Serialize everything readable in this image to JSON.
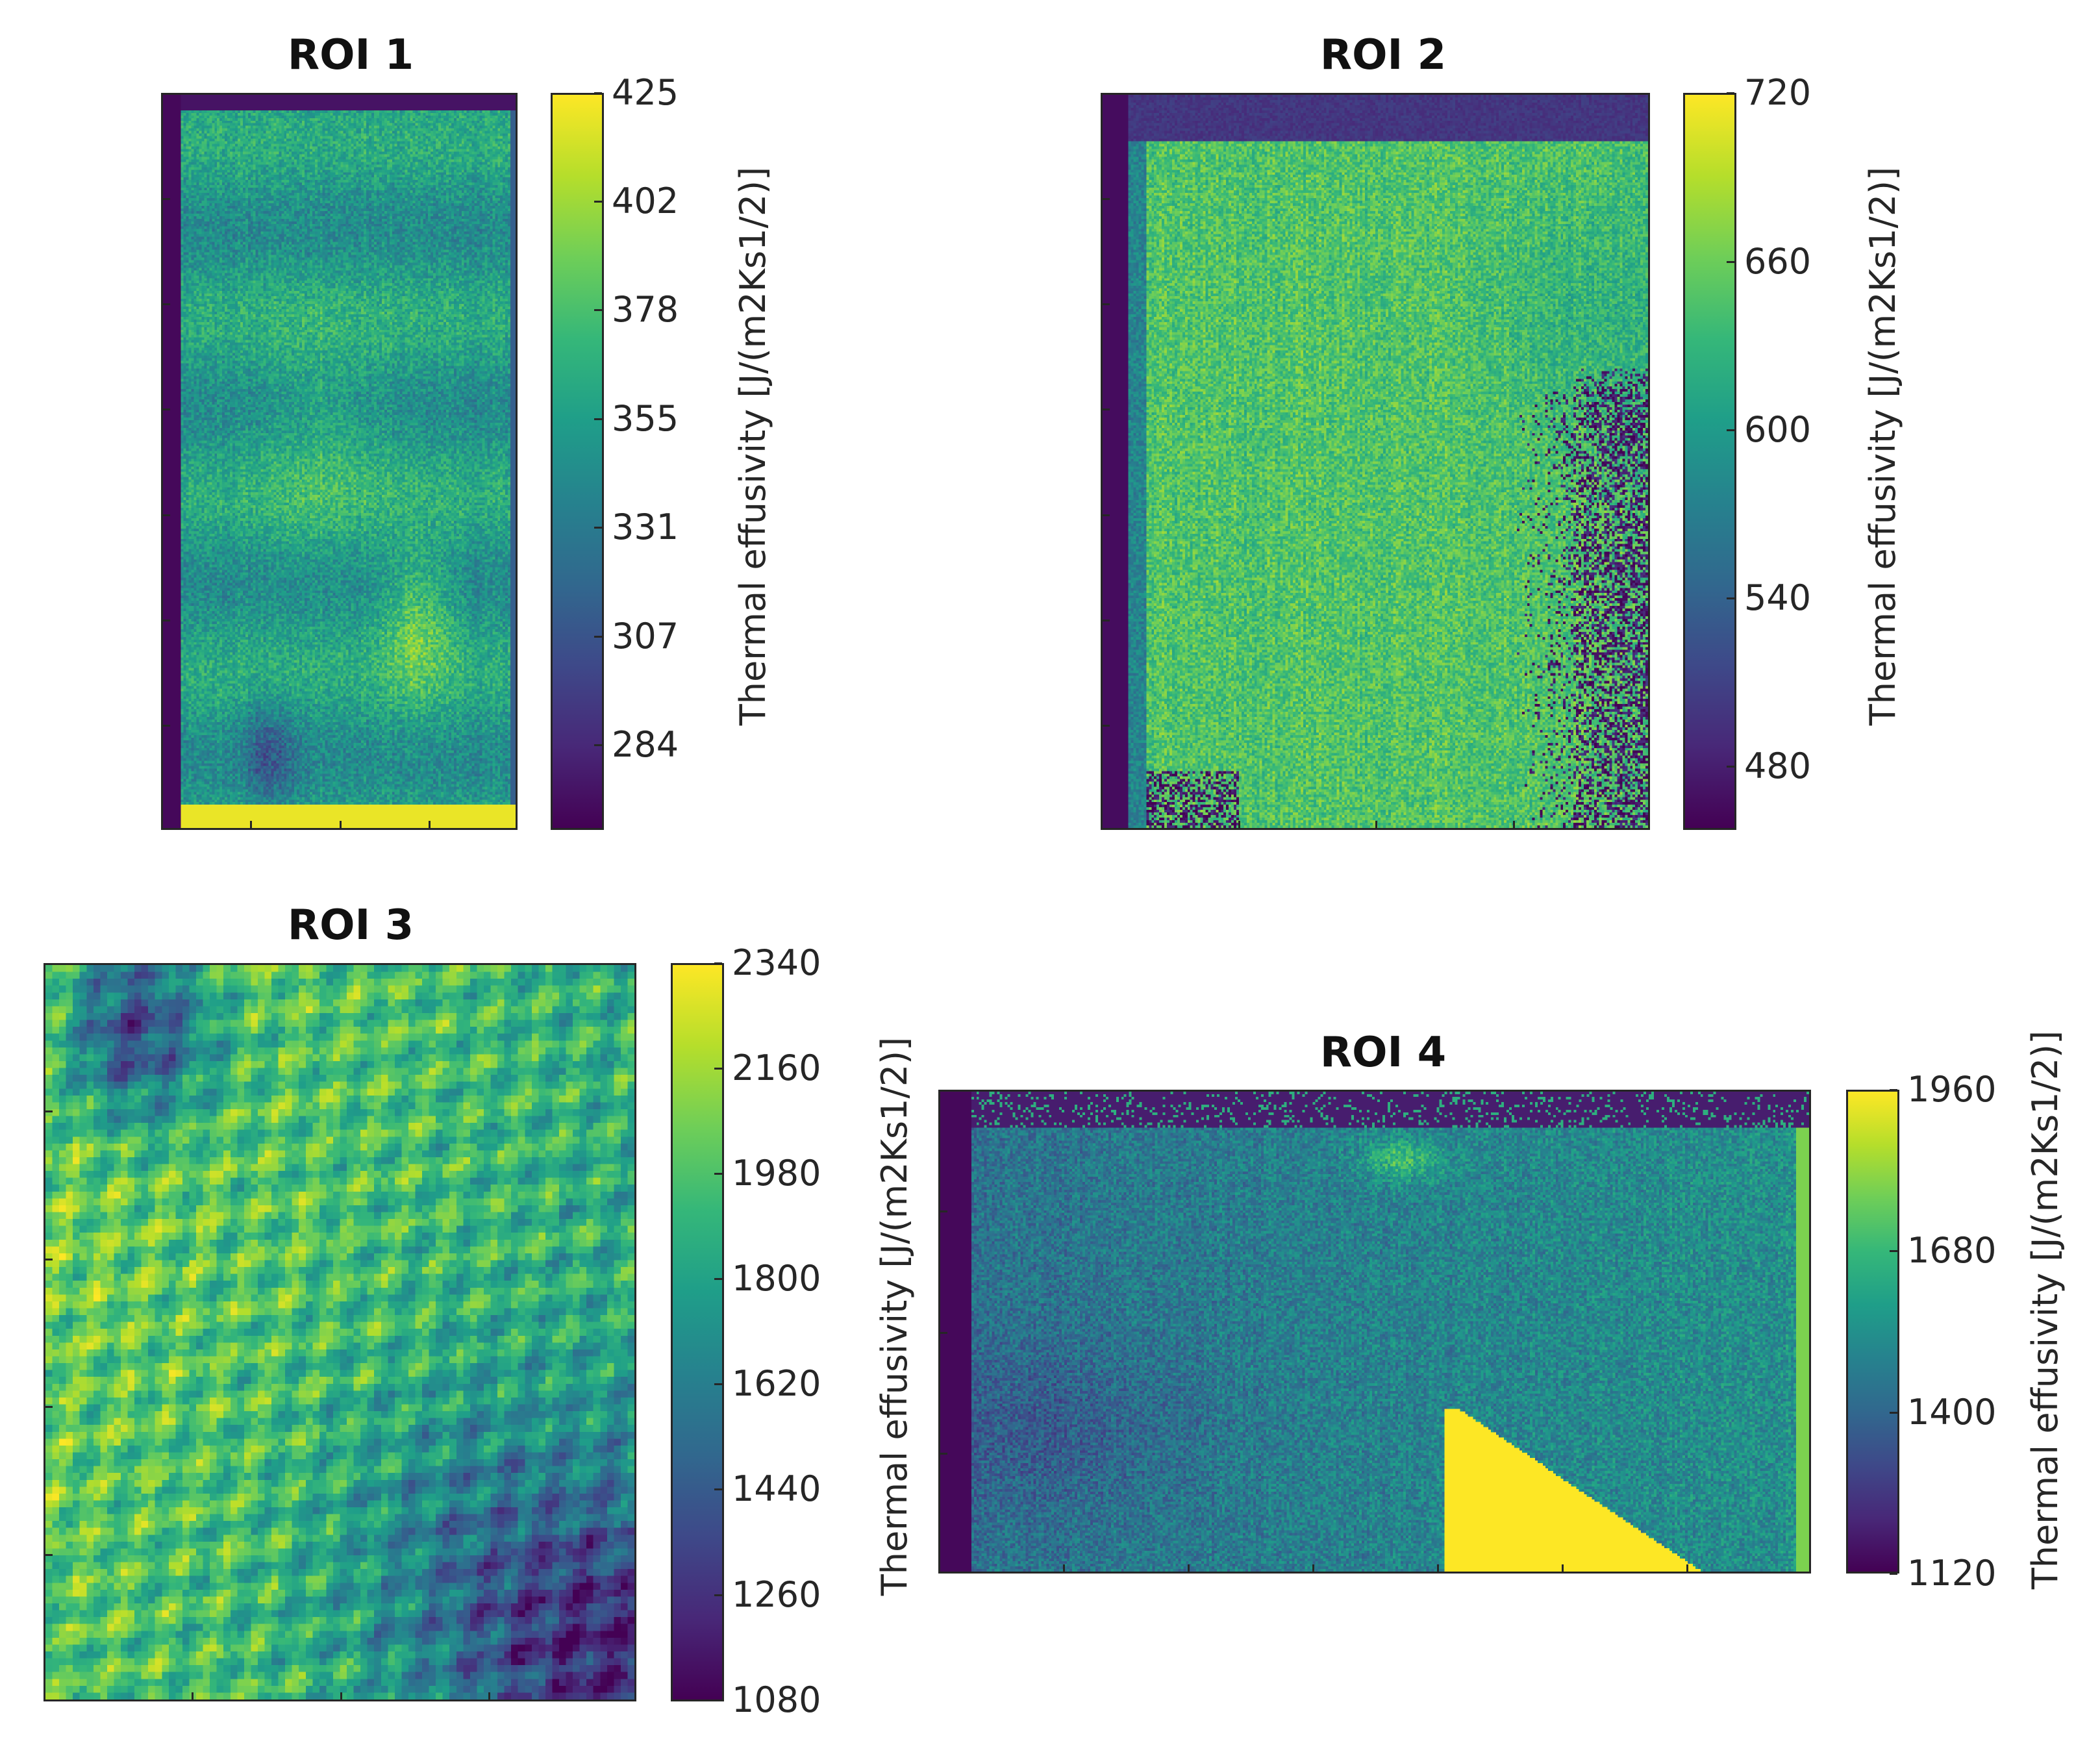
{
  "chart_data": [
    {
      "type": "heatmap",
      "title": "ROI 1",
      "colormap": "viridis",
      "colorbar": {
        "label": "Thermal effusivity [J/(m2Ks1/2)]",
        "ticks": [
          "425",
          "402",
          "378",
          "355",
          "331",
          "307",
          "284"
        ],
        "range": [
          260,
          425
        ]
      },
      "pattern": "roi1",
      "seed": 11
    },
    {
      "type": "heatmap",
      "title": "ROI 2",
      "colormap": "viridis",
      "colorbar": {
        "label": "Thermal effusivity [J/(m2Ks1/2)]",
        "ticks": [
          "720",
          "660",
          "600",
          "540",
          "480"
        ],
        "range": [
          450,
          720
        ]
      },
      "pattern": "roi2",
      "seed": 23
    },
    {
      "type": "heatmap",
      "title": "ROI 3",
      "colormap": "viridis",
      "colorbar": {
        "label": "Thermal effusivity [J/(m2Ks1/2)]",
        "ticks": [
          "2340",
          "2160",
          "1980",
          "1800",
          "1620",
          "1440",
          "1260",
          "1080"
        ],
        "range": [
          1080,
          2340
        ]
      },
      "pattern": "roi3",
      "seed": 37
    },
    {
      "type": "heatmap",
      "title": "ROI 4",
      "colormap": "viridis",
      "colorbar": {
        "label": "Thermal effusivity [J/(m2Ks1/2)]",
        "ticks": [
          "1960",
          "1680",
          "1400",
          "1120"
        ],
        "range": [
          1120,
          1960
        ]
      },
      "pattern": "roi4",
      "seed": 53
    }
  ]
}
